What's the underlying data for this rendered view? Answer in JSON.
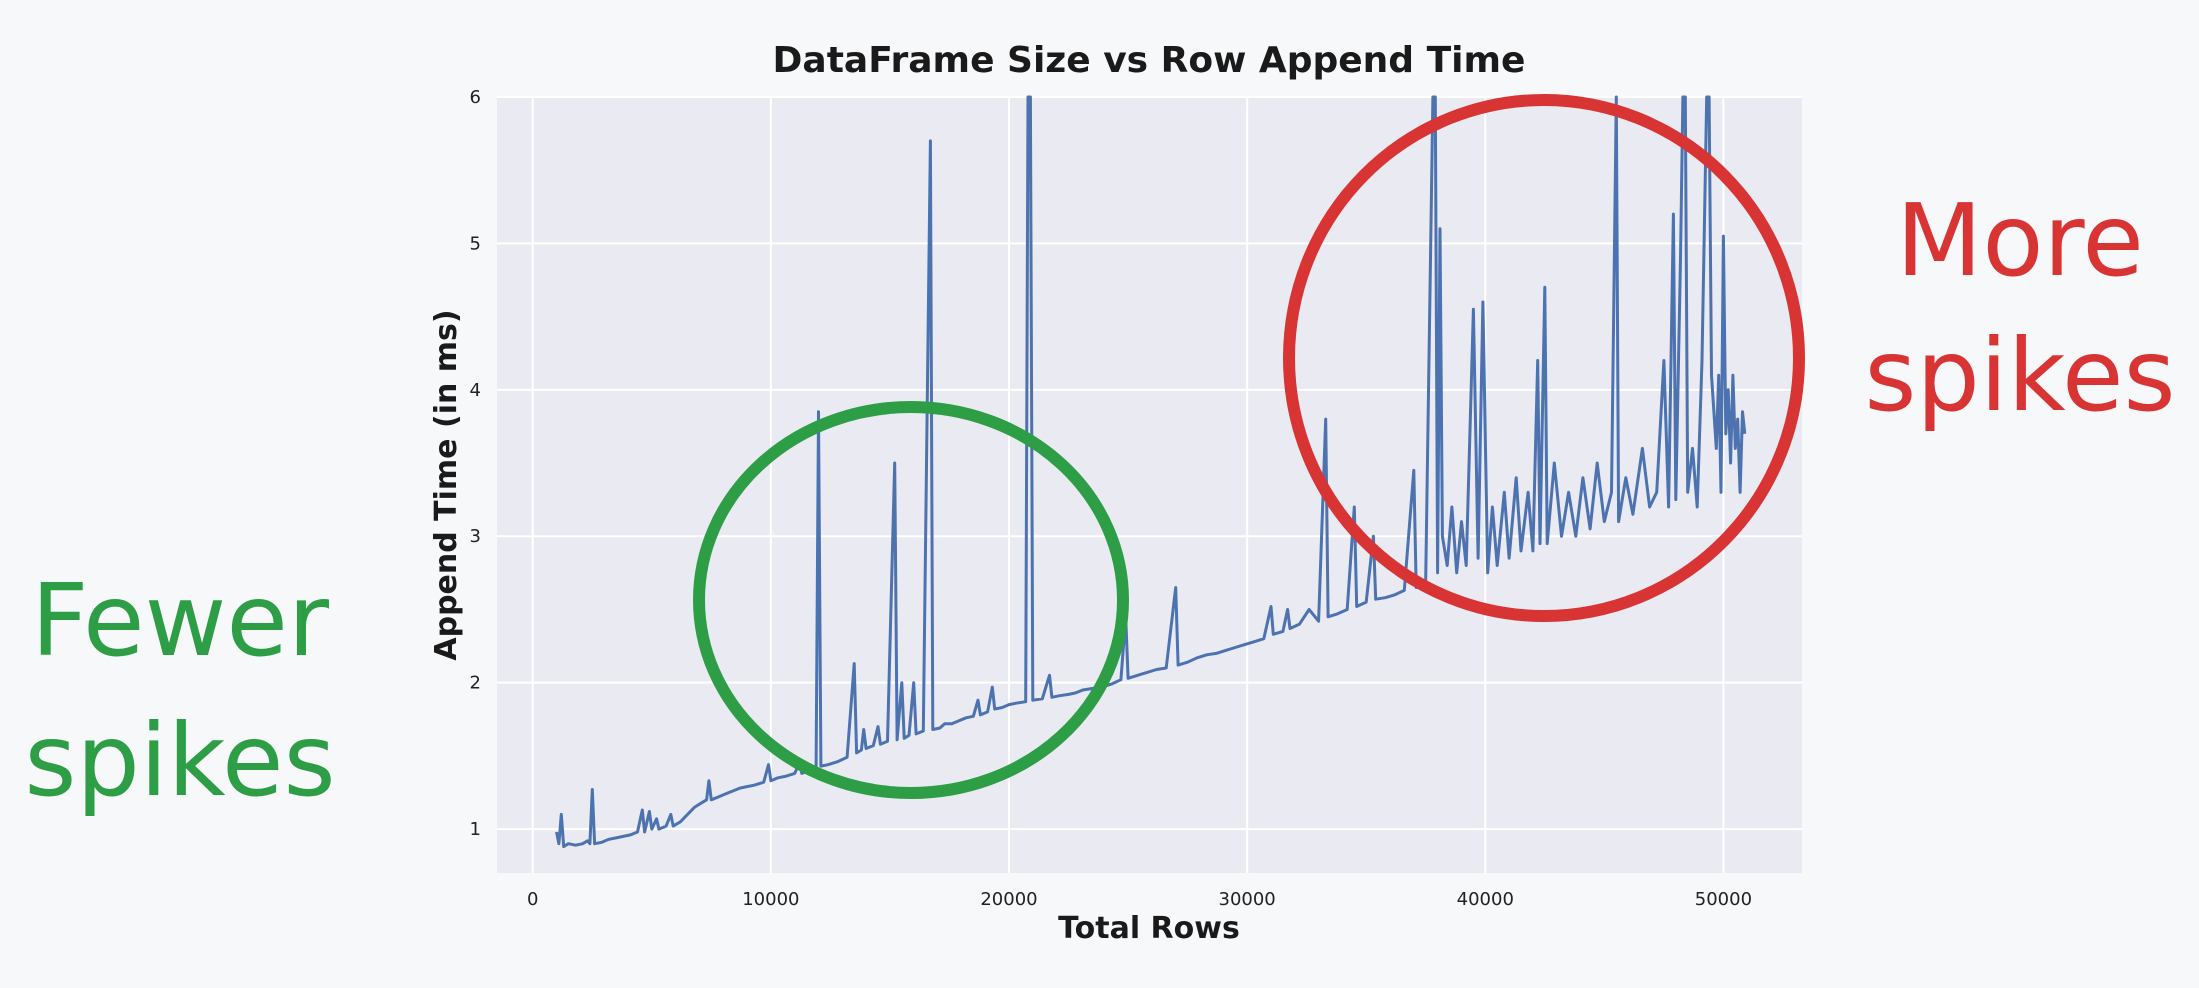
{
  "chart_data": {
    "type": "line",
    "title": "DataFrame Size vs Row Append Time",
    "xlabel": "Total Rows",
    "ylabel": "Append Time (in ms)",
    "xlim": [
      -1500,
      53300
    ],
    "ylim": [
      0.7,
      6.0
    ],
    "xticks": [
      0,
      10000,
      20000,
      30000,
      40000,
      50000
    ],
    "yticks": [
      1,
      2,
      3,
      4,
      5,
      6
    ],
    "grid": true,
    "legend": "none",
    "series": [
      {
        "color": "#4c72b0",
        "points": [
          [
            1000,
            0.98
          ],
          [
            1100,
            0.9
          ],
          [
            1200,
            1.1
          ],
          [
            1300,
            0.88
          ],
          [
            1500,
            0.9
          ],
          [
            1800,
            0.89
          ],
          [
            2100,
            0.9
          ],
          [
            2300,
            0.92
          ],
          [
            2400,
            0.9
          ],
          [
            2500,
            1.27
          ],
          [
            2600,
            0.9
          ],
          [
            2900,
            0.91
          ],
          [
            3200,
            0.93
          ],
          [
            3500,
            0.94
          ],
          [
            3800,
            0.95
          ],
          [
            4100,
            0.96
          ],
          [
            4400,
            0.98
          ],
          [
            4600,
            1.13
          ],
          [
            4700,
            0.98
          ],
          [
            4900,
            1.12
          ],
          [
            5000,
            1.0
          ],
          [
            5200,
            1.07
          ],
          [
            5300,
            1.0
          ],
          [
            5600,
            1.02
          ],
          [
            5800,
            1.1
          ],
          [
            5900,
            1.02
          ],
          [
            6200,
            1.05
          ],
          [
            6500,
            1.1
          ],
          [
            6800,
            1.15
          ],
          [
            7100,
            1.18
          ],
          [
            7300,
            1.2
          ],
          [
            7400,
            1.33
          ],
          [
            7500,
            1.2
          ],
          [
            7800,
            1.22
          ],
          [
            8100,
            1.24
          ],
          [
            8400,
            1.26
          ],
          [
            8700,
            1.28
          ],
          [
            9000,
            1.29
          ],
          [
            9300,
            1.3
          ],
          [
            9700,
            1.32
          ],
          [
            9900,
            1.44
          ],
          [
            10000,
            1.33
          ],
          [
            10300,
            1.35
          ],
          [
            10600,
            1.36
          ],
          [
            11000,
            1.38
          ],
          [
            11200,
            1.45
          ],
          [
            11300,
            1.38
          ],
          [
            11600,
            1.4
          ],
          [
            11900,
            1.42
          ],
          [
            12000,
            3.85
          ],
          [
            12100,
            1.43
          ],
          [
            12400,
            1.44
          ],
          [
            12800,
            1.46
          ],
          [
            13200,
            1.49
          ],
          [
            13500,
            2.13
          ],
          [
            13600,
            1.52
          ],
          [
            13800,
            1.54
          ],
          [
            13900,
            1.68
          ],
          [
            14000,
            1.55
          ],
          [
            14300,
            1.57
          ],
          [
            14500,
            1.7
          ],
          [
            14600,
            1.58
          ],
          [
            14900,
            1.6
          ],
          [
            15200,
            3.5
          ],
          [
            15300,
            1.61
          ],
          [
            15500,
            2.0
          ],
          [
            15600,
            1.62
          ],
          [
            15800,
            1.64
          ],
          [
            16000,
            2.0
          ],
          [
            16100,
            1.65
          ],
          [
            16400,
            1.67
          ],
          [
            16700,
            5.7
          ],
          [
            16800,
            1.68
          ],
          [
            17100,
            1.69
          ],
          [
            17300,
            1.72
          ],
          [
            17600,
            1.72
          ],
          [
            17900,
            1.74
          ],
          [
            18200,
            1.76
          ],
          [
            18500,
            1.77
          ],
          [
            18700,
            1.88
          ],
          [
            18800,
            1.78
          ],
          [
            19100,
            1.8
          ],
          [
            19300,
            1.97
          ],
          [
            19400,
            1.82
          ],
          [
            19700,
            1.83
          ],
          [
            20000,
            1.85
          ],
          [
            20300,
            1.86
          ],
          [
            20700,
            1.87
          ],
          [
            20800,
            6.0
          ],
          [
            20900,
            6.0
          ],
          [
            21000,
            1.88
          ],
          [
            21400,
            1.89
          ],
          [
            21700,
            2.05
          ],
          [
            21800,
            1.9
          ],
          [
            22100,
            1.91
          ],
          [
            22500,
            1.92
          ],
          [
            22800,
            1.93
          ],
          [
            23100,
            1.95
          ],
          [
            23500,
            1.96
          ],
          [
            23900,
            1.97
          ],
          [
            24300,
            1.99
          ],
          [
            24700,
            2.02
          ],
          [
            24900,
            2.45
          ],
          [
            25000,
            2.03
          ],
          [
            25400,
            2.05
          ],
          [
            25800,
            2.07
          ],
          [
            26200,
            2.09
          ],
          [
            26600,
            2.1
          ],
          [
            27000,
            2.65
          ],
          [
            27100,
            2.12
          ],
          [
            27500,
            2.14
          ],
          [
            27900,
            2.17
          ],
          [
            28300,
            2.19
          ],
          [
            28700,
            2.2
          ],
          [
            29100,
            2.22
          ],
          [
            29500,
            2.24
          ],
          [
            29900,
            2.26
          ],
          [
            30300,
            2.28
          ],
          [
            30700,
            2.3
          ],
          [
            31000,
            2.52
          ],
          [
            31100,
            2.33
          ],
          [
            31500,
            2.35
          ],
          [
            31700,
            2.5
          ],
          [
            31800,
            2.37
          ],
          [
            32200,
            2.4
          ],
          [
            32600,
            2.5
          ],
          [
            33000,
            2.42
          ],
          [
            33300,
            3.8
          ],
          [
            33400,
            2.45
          ],
          [
            33800,
            2.47
          ],
          [
            34200,
            2.5
          ],
          [
            34500,
            3.2
          ],
          [
            34600,
            2.52
          ],
          [
            35000,
            2.55
          ],
          [
            35300,
            3.0
          ],
          [
            35400,
            2.57
          ],
          [
            35800,
            2.58
          ],
          [
            36200,
            2.6
          ],
          [
            36600,
            2.63
          ],
          [
            37000,
            3.45
          ],
          [
            37100,
            2.65
          ],
          [
            37500,
            2.7
          ],
          [
            37800,
            6.0
          ],
          [
            37900,
            6.0
          ],
          [
            38000,
            2.75
          ],
          [
            38100,
            5.1
          ],
          [
            38200,
            3.0
          ],
          [
            38400,
            2.8
          ],
          [
            38600,
            3.2
          ],
          [
            38800,
            2.75
          ],
          [
            39000,
            3.1
          ],
          [
            39200,
            2.8
          ],
          [
            39500,
            4.55
          ],
          [
            39700,
            2.85
          ],
          [
            39900,
            4.6
          ],
          [
            40100,
            2.75
          ],
          [
            40300,
            3.2
          ],
          [
            40500,
            2.8
          ],
          [
            40800,
            3.3
          ],
          [
            41000,
            2.85
          ],
          [
            41300,
            3.4
          ],
          [
            41500,
            2.9
          ],
          [
            41800,
            3.3
          ],
          [
            42000,
            2.9
          ],
          [
            42200,
            4.2
          ],
          [
            42300,
            2.95
          ],
          [
            42500,
            4.7
          ],
          [
            42600,
            2.95
          ],
          [
            42900,
            3.5
          ],
          [
            43200,
            3.0
          ],
          [
            43500,
            3.3
          ],
          [
            43800,
            3.0
          ],
          [
            44100,
            3.4
          ],
          [
            44400,
            3.05
          ],
          [
            44700,
            3.5
          ],
          [
            45000,
            3.1
          ],
          [
            45300,
            3.3
          ],
          [
            45500,
            6.0
          ],
          [
            45600,
            3.1
          ],
          [
            45900,
            3.4
          ],
          [
            46200,
            3.15
          ],
          [
            46600,
            3.6
          ],
          [
            46900,
            3.2
          ],
          [
            47200,
            3.3
          ],
          [
            47500,
            4.2
          ],
          [
            47700,
            3.2
          ],
          [
            47900,
            5.2
          ],
          [
            48000,
            3.25
          ],
          [
            48200,
            4.9
          ],
          [
            48300,
            6.0
          ],
          [
            48400,
            6.0
          ],
          [
            48500,
            3.3
          ],
          [
            48700,
            3.6
          ],
          [
            48900,
            3.2
          ],
          [
            49100,
            4.2
          ],
          [
            49300,
            6.0
          ],
          [
            49400,
            6.0
          ],
          [
            49500,
            4.1
          ],
          [
            49700,
            3.6
          ],
          [
            49800,
            4.1
          ],
          [
            49900,
            3.3
          ],
          [
            50000,
            5.05
          ],
          [
            50100,
            3.7
          ],
          [
            50200,
            4.0
          ],
          [
            50300,
            3.5
          ],
          [
            50400,
            4.1
          ],
          [
            50500,
            3.6
          ],
          [
            50600,
            3.8
          ],
          [
            50700,
            3.3
          ],
          [
            50800,
            3.85
          ],
          [
            50900,
            3.7
          ]
        ]
      }
    ]
  },
  "annotations": {
    "fewer": {
      "line1": "Fewer",
      "line2": "spikes",
      "color": "#2e9e46"
    },
    "more": {
      "line1": "More",
      "line2": "spikes",
      "color": "#d93434"
    }
  }
}
